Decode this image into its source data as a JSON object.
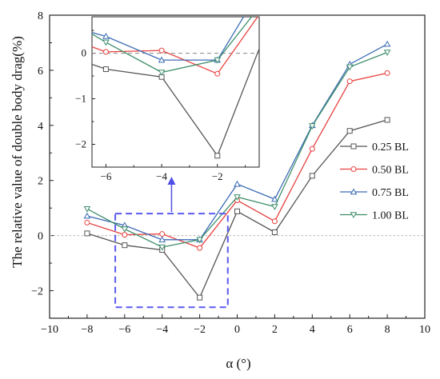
{
  "chart_data": {
    "type": "line",
    "xlabel": "α (°)",
    "ylabel": "The relative value of double body drag(%)",
    "xlim": [
      -10,
      10
    ],
    "ylim": [
      -3,
      8
    ],
    "xticks": [
      -10,
      -8,
      -6,
      -4,
      -2,
      0,
      2,
      4,
      6,
      8,
      10
    ],
    "yticks": [
      -2,
      0,
      2,
      4,
      6,
      8
    ],
    "x": [
      -8,
      -6,
      -4,
      -2,
      0,
      2,
      4,
      6,
      8
    ],
    "reference_line_y": 0,
    "legend_position": "right",
    "series": [
      {
        "name": "0.25 BL",
        "color": "#555555",
        "marker": "square",
        "values": [
          0.08,
          -0.35,
          -0.52,
          -2.25,
          0.88,
          0.12,
          2.17,
          3.8,
          4.2
        ]
      },
      {
        "name": "0.50 BL",
        "color": "#e8413e",
        "marker": "circle",
        "values": [
          0.47,
          0.03,
          0.06,
          -0.45,
          1.28,
          0.52,
          3.15,
          5.6,
          5.9
        ]
      },
      {
        "name": "0.75 BL",
        "color": "#3d6bb5",
        "marker": "triangle",
        "values": [
          0.71,
          0.37,
          -0.15,
          -0.15,
          1.87,
          1.32,
          4.0,
          6.22,
          6.95
        ]
      },
      {
        "name": "1.00 BL",
        "color": "#3f8f6c",
        "marker": "invtriangle",
        "values": [
          0.97,
          0.24,
          -0.42,
          -0.15,
          1.4,
          1.05,
          3.98,
          6.12,
          6.65
        ]
      }
    ],
    "inset": {
      "xlim": [
        -6.5,
        -0.5
      ],
      "ylim": [
        -2.5,
        0.8
      ],
      "xticks": [
        -6,
        -4,
        -2
      ],
      "yticks": [
        -2,
        -1,
        0
      ]
    }
  }
}
